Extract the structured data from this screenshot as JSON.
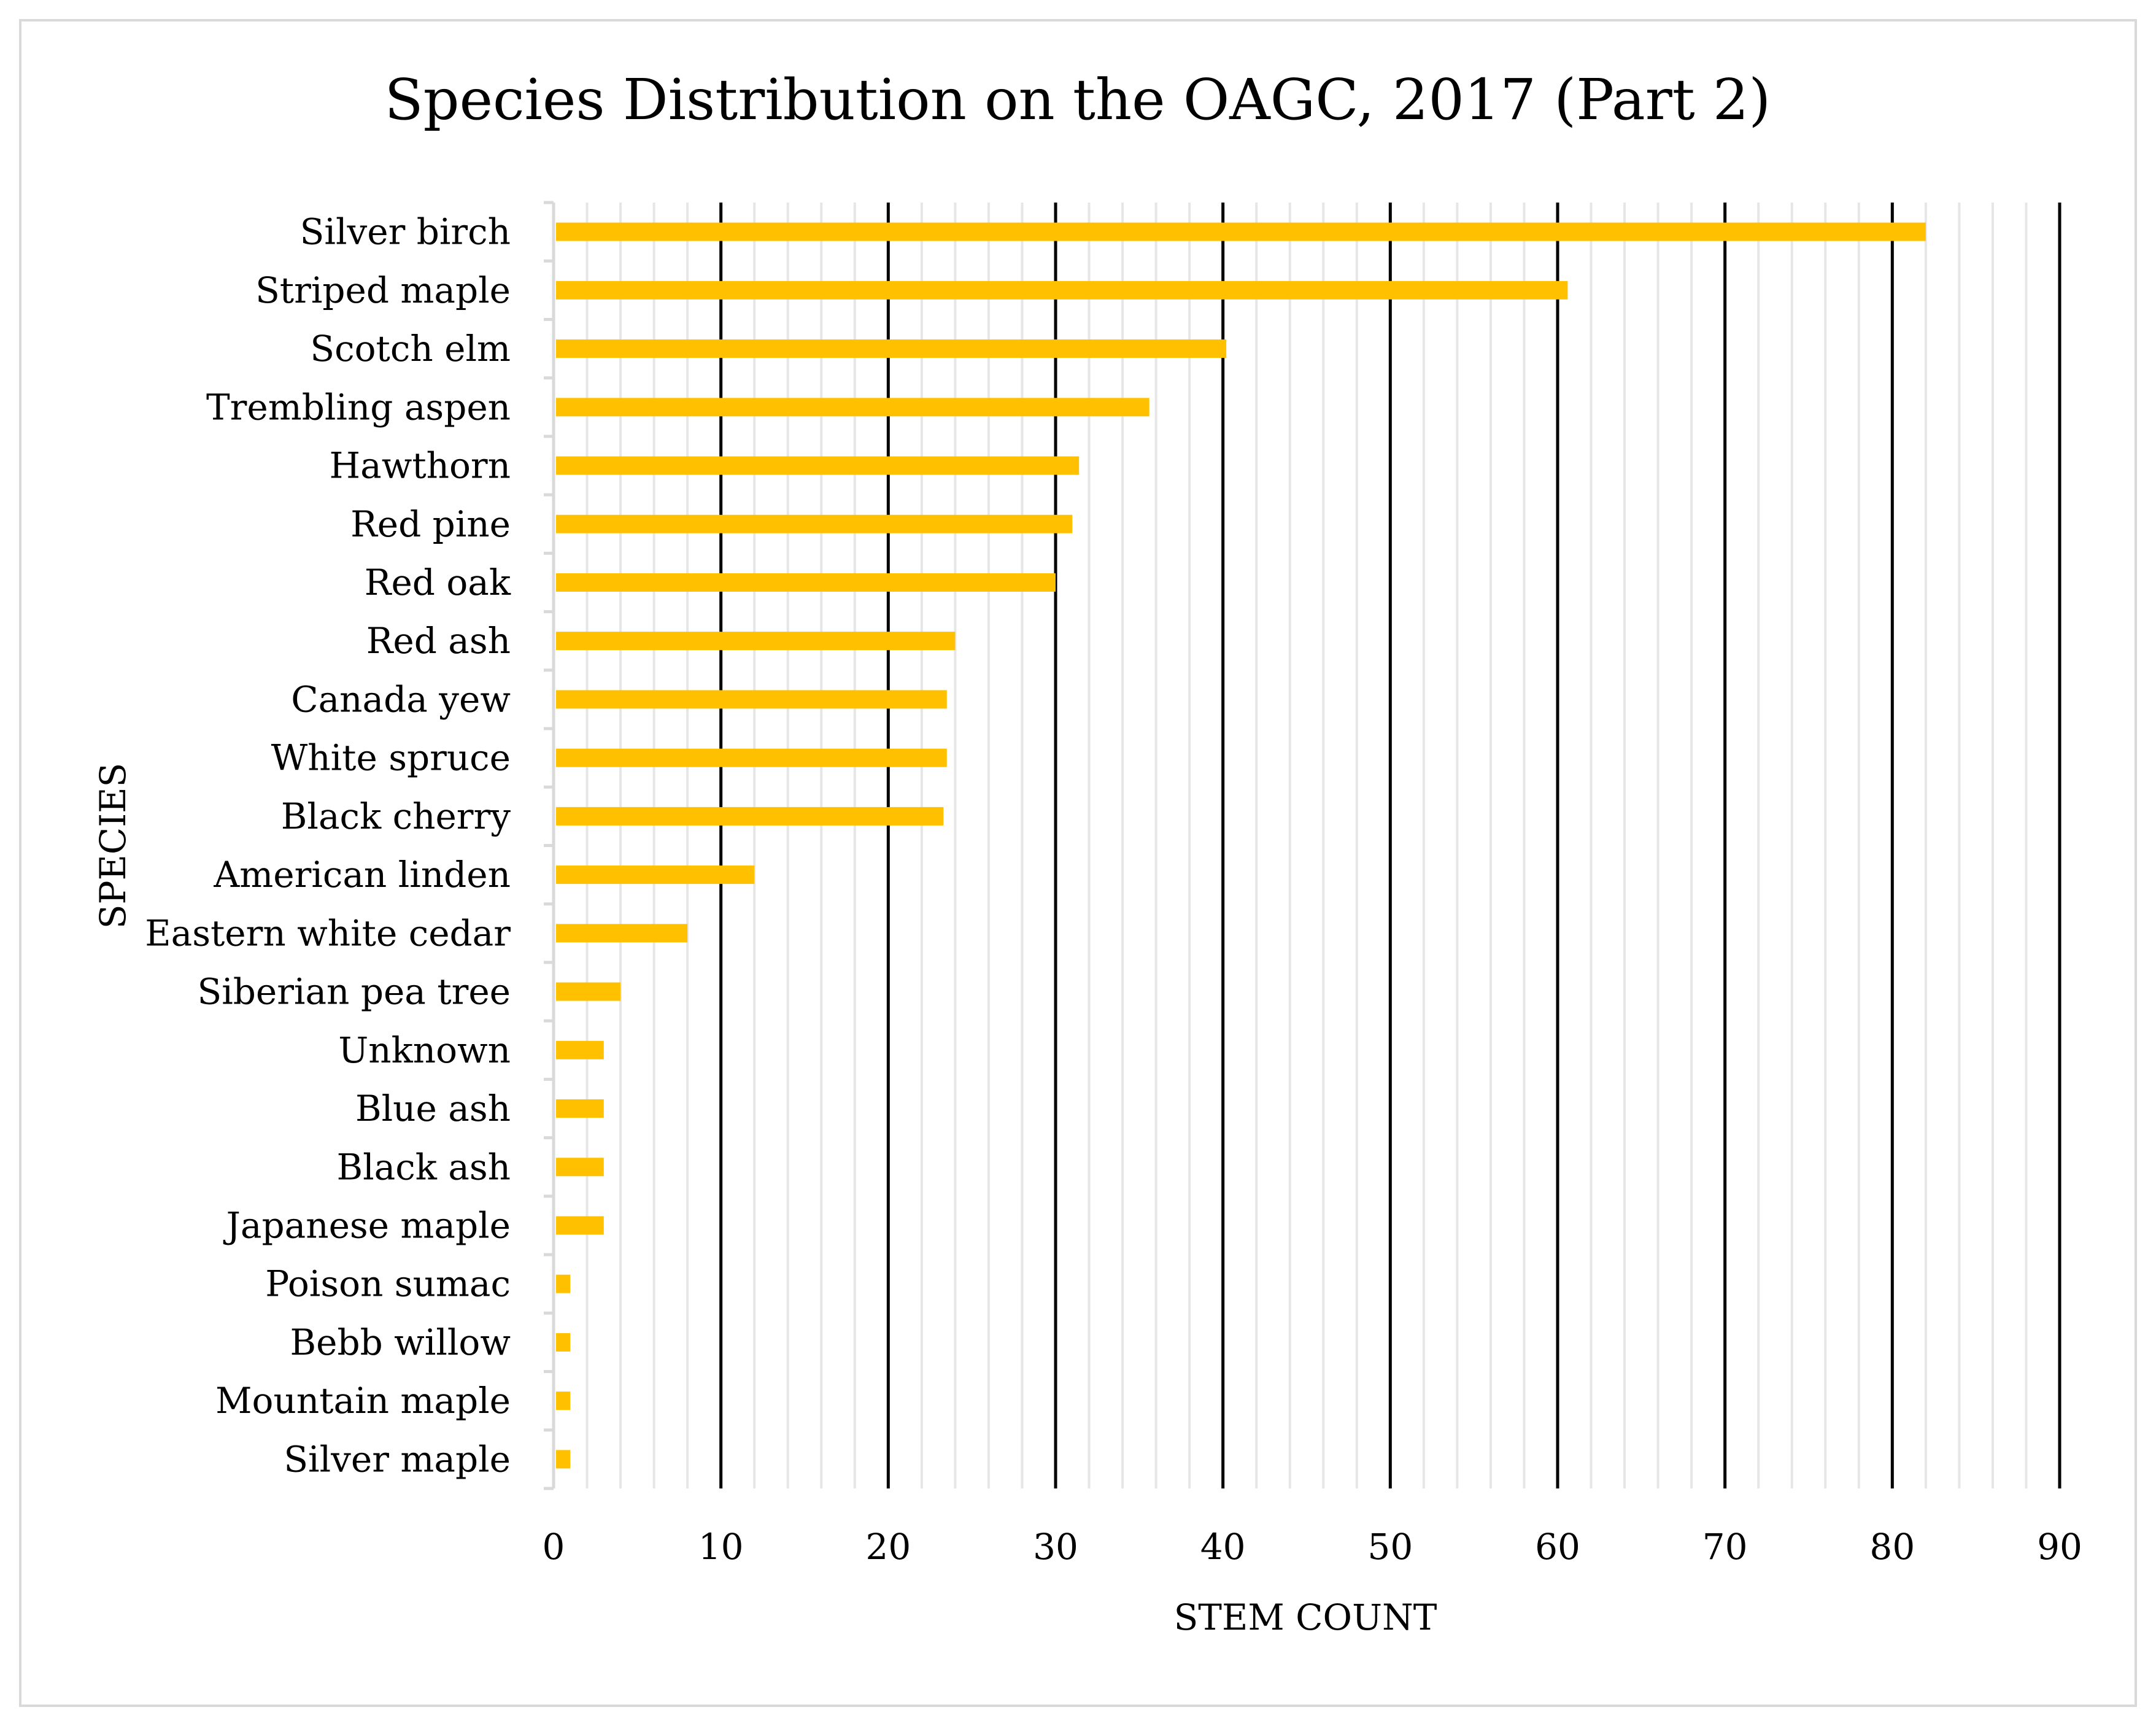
{
  "chart_data": {
    "type": "bar",
    "orientation": "horizontal",
    "title": "Species Distribution on the OAGC, 2017 (Part 2)",
    "xlabel": "STEM COUNT",
    "ylabel": "SPECIES",
    "xlim": [
      0,
      90
    ],
    "major_ticks": [
      0,
      10,
      20,
      30,
      40,
      50,
      60,
      70,
      80,
      90
    ],
    "minor_tick_step": 2,
    "grid": true,
    "bar_color": "#FFC000",
    "major_grid_color": "#000000",
    "minor_grid_color": "#e6e6e6",
    "categories": [
      "Silver birch",
      "Striped maple",
      "Scotch elm",
      "Trembling aspen",
      "Hawthorn",
      "Red pine",
      "Red oak",
      "Red ash",
      "Canada yew",
      "White spruce",
      "Black cherry",
      "American linden",
      "Eastern white cedar",
      "Siberian pea tree",
      "Unknown",
      "Blue ash",
      "Black ash",
      "Japanese maple",
      "Poison sumac",
      "Bebb willow",
      "Mountain maple",
      "Silver maple"
    ],
    "values": [
      82,
      60.6,
      40.2,
      35.6,
      31.4,
      31,
      30,
      24,
      23.5,
      23.5,
      23.3,
      12,
      8,
      4,
      3,
      3,
      3,
      3,
      1,
      1,
      1,
      1
    ]
  }
}
